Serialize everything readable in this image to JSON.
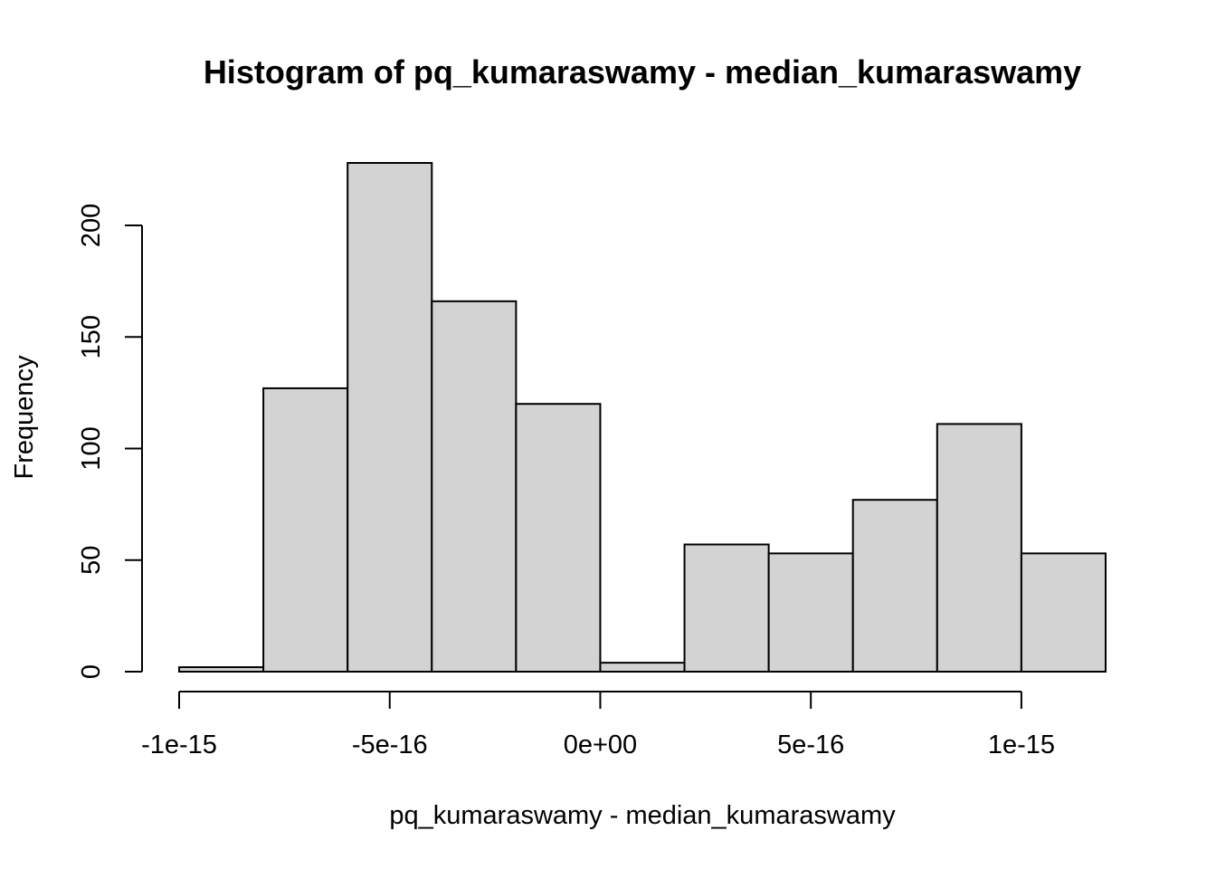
{
  "chart_data": {
    "type": "bar",
    "title": "Histogram of pq_kumaraswamy - median_kumaraswamy",
    "xlabel": "pq_kumaraswamy - median_kumaraswamy",
    "ylabel": "Frequency",
    "bins": [
      {
        "x0": -1e-15,
        "x1": -8e-16,
        "count": 2
      },
      {
        "x0": -8e-16,
        "x1": -6e-16,
        "count": 127
      },
      {
        "x0": -6e-16,
        "x1": -4e-16,
        "count": 228
      },
      {
        "x0": -4e-16,
        "x1": -2e-16,
        "count": 166
      },
      {
        "x0": -2e-16,
        "x1": 0.0,
        "count": 120
      },
      {
        "x0": 0.0,
        "x1": 2e-16,
        "count": 4
      },
      {
        "x0": 2e-16,
        "x1": 4e-16,
        "count": 57
      },
      {
        "x0": 4e-16,
        "x1": 6e-16,
        "count": 53
      },
      {
        "x0": 6e-16,
        "x1": 8e-16,
        "count": 77
      },
      {
        "x0": 8e-16,
        "x1": 1e-15,
        "count": 111
      },
      {
        "x0": 1e-15,
        "x1": 1.2e-15,
        "count": 53
      }
    ],
    "xticks": [
      {
        "value": -1e-15,
        "label": "-1e-15"
      },
      {
        "value": -5e-16,
        "label": "-5e-16"
      },
      {
        "value": 0.0,
        "label": "0e+00"
      },
      {
        "value": 5e-16,
        "label": "5e-16"
      },
      {
        "value": 1e-15,
        "label": "1e-15"
      }
    ],
    "yticks": [
      {
        "value": 0,
        "label": "0"
      },
      {
        "value": 50,
        "label": "50"
      },
      {
        "value": 100,
        "label": "100"
      },
      {
        "value": 150,
        "label": "150"
      },
      {
        "value": 200,
        "label": "200"
      }
    ],
    "xlim": [
      -1e-15,
      1.2e-15
    ],
    "ylim": [
      0,
      228
    ],
    "grid": false,
    "colors": {
      "bar_fill": "#d3d3d3",
      "bar_stroke": "#000000"
    }
  }
}
